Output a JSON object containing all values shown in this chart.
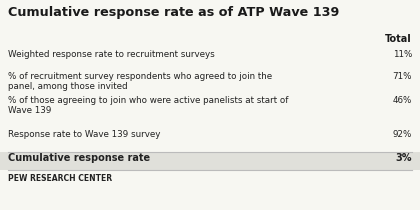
{
  "title": "Cumulative response rate as of ATP Wave 139",
  "col_header": "Total",
  "rows": [
    {
      "label": "Weighted response rate to recruitment surveys",
      "value": "11%"
    },
    {
      "label": "% of recruitment survey respondents who agreed to join the\npanel, among those invited",
      "value": "71%"
    },
    {
      "label": "% of those agreeing to join who were active panelists at start of\nWave 139",
      "value": "46%"
    },
    {
      "label": "Response rate to Wave 139 survey",
      "value": "92%"
    }
  ],
  "summary_label": "Cumulative response rate",
  "summary_value": "3%",
  "footer": "PEW RESEARCH CENTER",
  "bg_color": "#f7f7f2",
  "title_color": "#1a1a1a",
  "text_color": "#222222",
  "footer_color": "#222222",
  "header_color": "#1a1a1a",
  "summary_bg": "#e0e0da",
  "divider_color": "#bbbbbb"
}
